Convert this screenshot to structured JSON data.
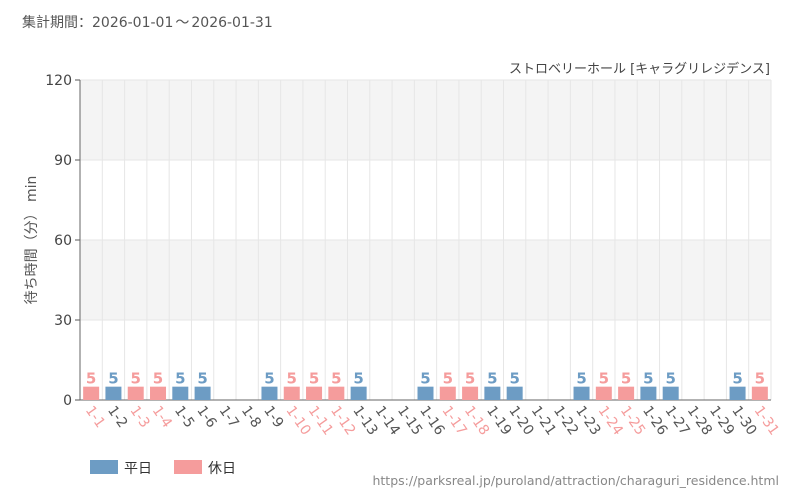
{
  "header": {
    "period_label": "集計期間：",
    "start_date": "2026-01-01",
    "separator": "〜",
    "end_date": "2026-01-31",
    "attraction": "ストロベリーホール [キャラグリレジデンス]"
  },
  "footer": {
    "source_url": "https://parksreal.jp/puroland/attraction/charaguri_residence.html"
  },
  "colors": {
    "weekday": "#6d9cc4",
    "holiday": "#f59c9c",
    "weekday_label": "#555555",
    "grid": "#e6e6e6",
    "band": "#f4f4f4"
  },
  "chart_data": {
    "type": "bar",
    "ylabel": "待ち時間（分） min",
    "ylim": [
      0,
      120
    ],
    "yticks": [
      0,
      30,
      60,
      90,
      120
    ],
    "grid": true,
    "legend_position": "bottom-left",
    "legend": [
      {
        "key": "weekday",
        "label": "平日"
      },
      {
        "key": "holiday",
        "label": "休日"
      }
    ],
    "categories": [
      "1-1",
      "1-2",
      "1-3",
      "1-4",
      "1-5",
      "1-6",
      "1-7",
      "1-8",
      "1-9",
      "1-10",
      "1-11",
      "1-12",
      "1-13",
      "1-14",
      "1-15",
      "1-16",
      "1-17",
      "1-18",
      "1-19",
      "1-20",
      "1-21",
      "1-22",
      "1-23",
      "1-24",
      "1-25",
      "1-26",
      "1-27",
      "1-28",
      "1-29",
      "1-30",
      "1-31"
    ],
    "day_type": [
      "holiday",
      "weekday",
      "holiday",
      "holiday",
      "weekday",
      "weekday",
      "weekday",
      "weekday",
      "weekday",
      "holiday",
      "holiday",
      "holiday",
      "weekday",
      "weekday",
      "weekday",
      "weekday",
      "holiday",
      "holiday",
      "weekday",
      "weekday",
      "weekday",
      "weekday",
      "weekday",
      "holiday",
      "holiday",
      "weekday",
      "weekday",
      "weekday",
      "weekday",
      "weekday",
      "holiday"
    ],
    "values": [
      5,
      5,
      5,
      5,
      5,
      5,
      null,
      null,
      5,
      5,
      5,
      5,
      5,
      null,
      null,
      5,
      5,
      5,
      5,
      5,
      null,
      null,
      5,
      5,
      5,
      5,
      5,
      null,
      null,
      5,
      5
    ]
  }
}
